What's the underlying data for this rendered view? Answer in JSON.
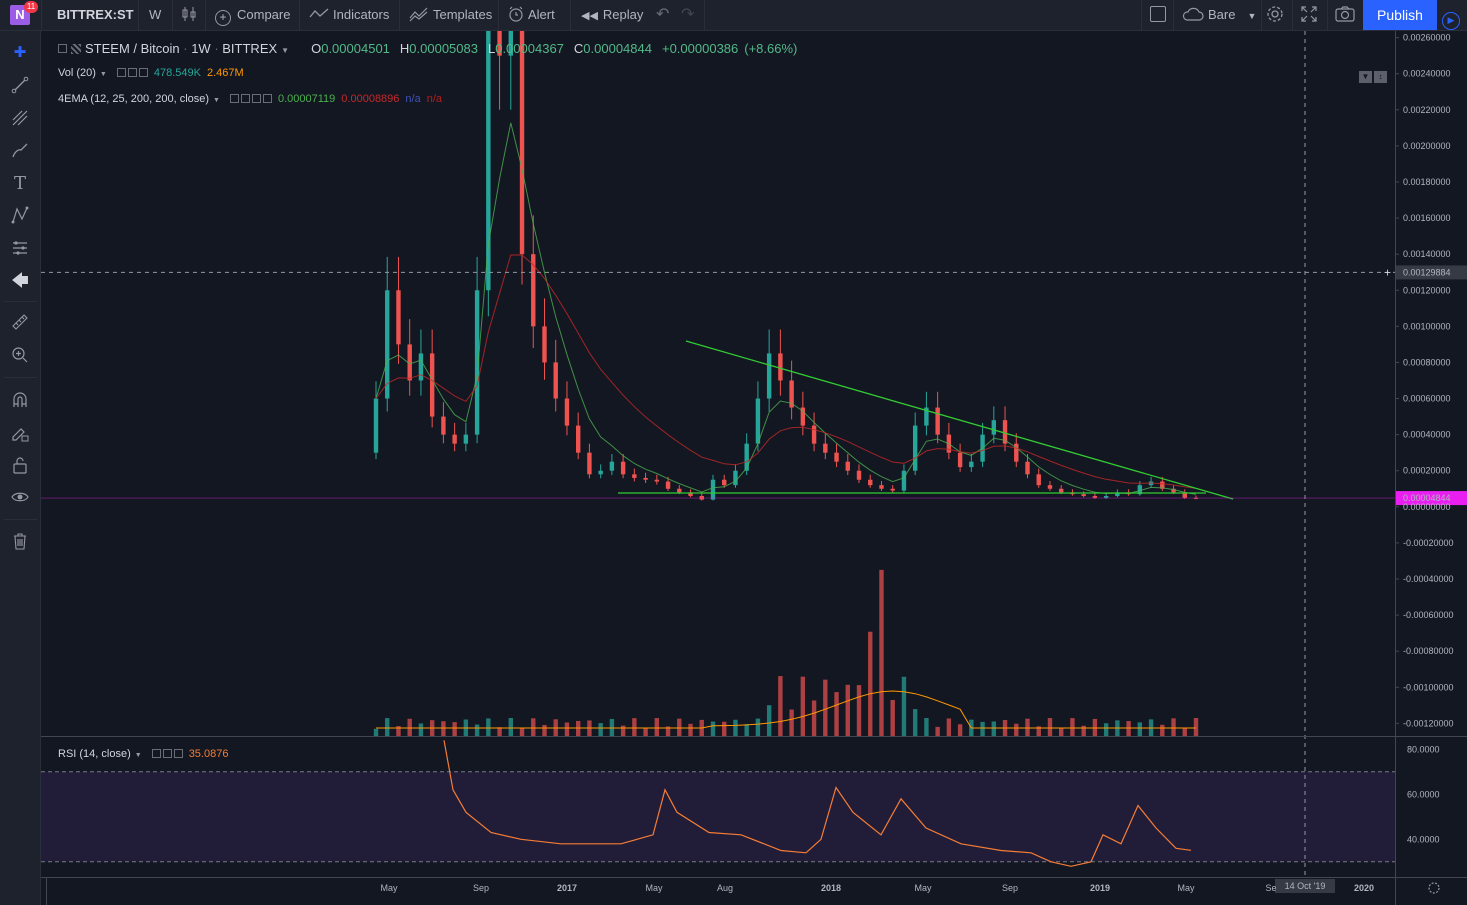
{
  "toolbar": {
    "notification_count": "11",
    "logo_letter": "N",
    "symbol": "BITTREX:ST",
    "interval": "W",
    "compare_label": "Compare",
    "indicators_label": "Indicators",
    "templates_label": "Templates",
    "alert_label": "Alert",
    "replay_label": "Replay",
    "layout_label": "Bare",
    "publish_label": "Publish"
  },
  "legend": {
    "pair": "STEEM / Bitcoin",
    "interval": "1W",
    "exchange": "BITTREX",
    "open_label": "O",
    "open": "0.00004501",
    "high_label": "H",
    "high": "0.00005083",
    "low_label": "L",
    "low": "0.00004367",
    "close_label": "C",
    "close": "0.00004844",
    "change": "+0.00000386",
    "change_pct": "(+8.66%)",
    "vol_name": "Vol (20)",
    "vol_value": "478.549K",
    "vol_ma": "2.467M",
    "ema_name": "4EMA (12, 25, 200, 200, close)",
    "ema_v1": "0.00007119",
    "ema_v2": "0.00008896",
    "ema_v3": "n/a",
    "ema_v4": "n/a",
    "rsi_name": "RSI (14, close)",
    "rsi_value": "35.0876"
  },
  "price_axis": {
    "labels": [
      "0.00260000",
      "0.00240000",
      "0.00220000",
      "0.00200000",
      "0.00180000",
      "0.00160000",
      "0.00140000",
      "0.00120000",
      "0.00100000",
      "0.00080000",
      "0.00060000",
      "0.00040000",
      "0.00020000",
      "0.00000000",
      "-0.00020000",
      "-0.00040000",
      "-0.00060000",
      "-0.00080000",
      "-0.00100000",
      "-0.00120000"
    ],
    "crosshair_price": "0.00129884",
    "last_price": "0.00004844"
  },
  "rsi_axis": {
    "labels": [
      "80.0000",
      "60.0000",
      "40.0000"
    ]
  },
  "time_axis": {
    "labels": [
      "May",
      "Sep",
      "2017",
      "May",
      "Aug",
      "2018",
      "May",
      "Sep",
      "2019",
      "May",
      "Se",
      "2020"
    ],
    "crosshair_date": "14 Oct '19"
  },
  "colors": {
    "up": "#26a69a",
    "down": "#ef5350",
    "trendline": "#33cc33",
    "rsi_line": "#f57c35",
    "rsi_band": "#211d39",
    "accent": "#2962ff",
    "last_price_bg": "#e91ef0"
  },
  "chart_data": {
    "type": "candlestick",
    "title": "STEEM / Bitcoin 1W BITTREX",
    "price_range": [
      -0.00127,
      0.00262
    ],
    "trendlines": [
      {
        "from": [
          "2017 Mar",
          3.8e-05
        ],
        "to": [
          "2019 Jun",
          3.8e-05
        ]
      },
      {
        "from": [
          "2017 Jun",
          0.00091
        ],
        "to": [
          "2019 Jun",
          0.0
        ]
      }
    ],
    "candles_close_approx": [
      0.0006,
      0.0012,
      0.0009,
      0.0007,
      0.00085,
      0.0005,
      0.0004,
      0.00035,
      0.0004,
      0.0012,
      0.0028,
      0.0025,
      0.0027,
      0.0014,
      0.001,
      0.0008,
      0.0006,
      0.00045,
      0.0003,
      0.00018,
      0.0002,
      0.00025,
      0.00018,
      0.00016,
      0.00015,
      0.00014,
      0.0001,
      8e-05,
      6e-05,
      4e-05,
      0.00015,
      0.00012,
      0.0002,
      0.00035,
      0.0006,
      0.00085,
      0.0007,
      0.00055,
      0.00045,
      0.00035,
      0.0003,
      0.00025,
      0.0002,
      0.00015,
      0.00012,
      0.0001,
      9e-05,
      0.0002,
      0.00045,
      0.00055,
      0.0004,
      0.0003,
      0.00022,
      0.00025,
      0.0004,
      0.00048,
      0.00035,
      0.00025,
      0.00018,
      0.00012,
      0.0001,
      8e-05,
      7e-05,
      6e-05,
      5e-05,
      6e-05,
      8e-05,
      7e-05,
      0.00012,
      0.00014,
      0.0001,
      8e-05,
      5e-05,
      4.8e-05
    ],
    "volume_range": [
      0,
      11000000
    ],
    "rsi": {
      "range": [
        25,
        85
      ],
      "bands": [
        70,
        30
      ],
      "last": 35.0876
    }
  }
}
